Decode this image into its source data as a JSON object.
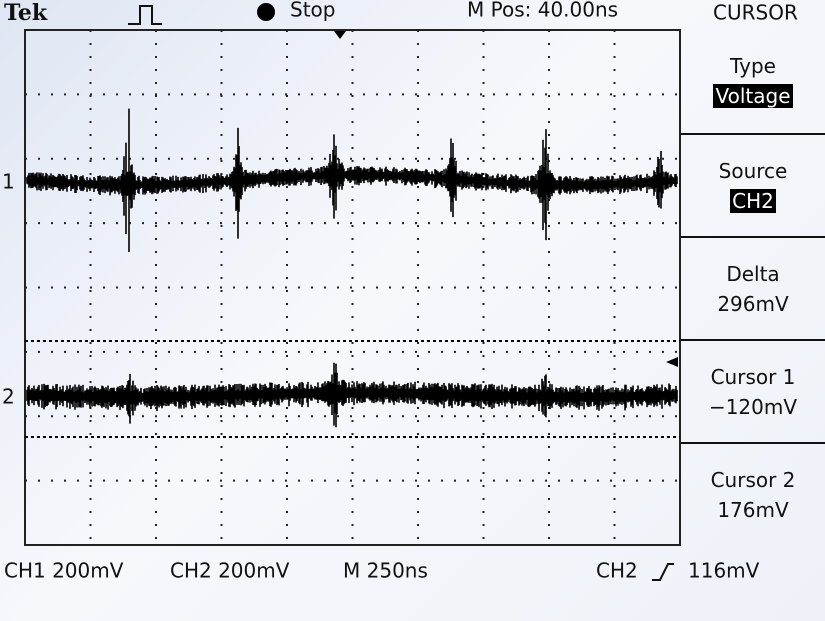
{
  "header": {
    "brand": "Tek",
    "status": "Stop",
    "position": "M Pos: 40.00ns",
    "menu_title": "CURSOR"
  },
  "menu": [
    {
      "label": "Type",
      "value": "Voltage",
      "highlighted": true
    },
    {
      "label": "Source",
      "value": "CH2",
      "highlighted": true
    },
    {
      "label": "Delta",
      "value": "296mV",
      "highlighted": false
    },
    {
      "label": "Cursor 1",
      "value": "−120mV",
      "highlighted": false
    },
    {
      "label": "Cursor 2",
      "value": "176mV",
      "highlighted": false
    }
  ],
  "markers": {
    "ch1": "1",
    "ch2": "2"
  },
  "footer": {
    "ch1_scale": "CH1 200mV",
    "ch2_scale": "CH2 200mV",
    "timebase": "M 250ns",
    "trigger_source": "CH2",
    "trigger_level": "116mV"
  }
}
